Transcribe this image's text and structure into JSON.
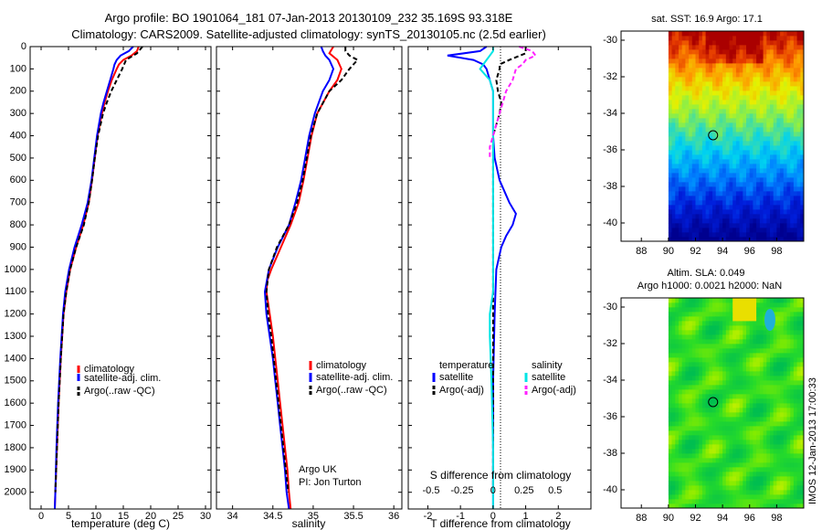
{
  "header": {
    "line1": "Argo profile: BO 1901064_181 07-Jan-2013 20130109_232 35.169S 93.318E",
    "line2": "Climatology: CARS2009. Satellite-adjusted climatology: synTS_20130105.nc (2.5d earlier)"
  },
  "annotation": {
    "line1": "Argo UK",
    "line2": "PI: Jon Turton"
  },
  "side_label": "IMOS 12-Jan-2013 17:00:33",
  "colors": {
    "red": "#ff0000",
    "blue": "#0000ff",
    "black": "#000000",
    "cyan": "#00e5e5",
    "magenta": "#ff22ff"
  },
  "chart_data": [
    {
      "type": "line",
      "xlabel": "temperature (deg C)",
      "ylabel": "",
      "xlim": [
        -2,
        31
      ],
      "ylim": [
        0,
        2075
      ],
      "xticks": [
        "0",
        "5",
        "10",
        "15",
        "20",
        "25",
        "30"
      ],
      "yticks": [
        "0",
        "100",
        "200",
        "300",
        "400",
        "500",
        "600",
        "700",
        "800",
        "900",
        "1000",
        "1100",
        "1200",
        "1300",
        "1400",
        "1500",
        "1600",
        "1700",
        "1800",
        "1900",
        "2000"
      ],
      "legend": [
        "climatology",
        "satellite-adj. clim.",
        "Argo(..raw -QC)"
      ],
      "series": [
        {
          "color": "red",
          "dash": "",
          "depth": [
            0,
            20,
            40,
            60,
            80,
            100,
            150,
            200,
            250,
            300,
            400,
            500,
            600,
            700,
            800,
            900,
            1000,
            1100,
            1200,
            1400,
            1600,
            1800,
            2000,
            2075
          ],
          "values": [
            17.8,
            17.5,
            16.5,
            15,
            14.2,
            13.8,
            12.9,
            12.2,
            11.6,
            11.1,
            10.3,
            9.8,
            9.3,
            8.7,
            7.7,
            6.4,
            5.3,
            4.6,
            4.1,
            3.6,
            3.2,
            2.9,
            2.6,
            2.5
          ]
        },
        {
          "color": "blue",
          "dash": "",
          "depth": [
            0,
            20,
            40,
            60,
            80,
            100,
            150,
            200,
            250,
            300,
            400,
            500,
            600,
            700,
            800,
            900,
            1000,
            1100,
            1200,
            1400,
            1600,
            1800,
            2000,
            2075
          ],
          "values": [
            16.8,
            16,
            14.5,
            13.8,
            13.4,
            13.2,
            12.6,
            12,
            11.4,
            10.9,
            10.2,
            9.7,
            9.2,
            8.5,
            7.4,
            6.1,
            5.1,
            4.4,
            4,
            3.5,
            3.1,
            2.8,
            2.6,
            2.5
          ]
        },
        {
          "color": "black",
          "dash": "5,3",
          "depth": [
            0,
            30,
            60,
            100,
            150,
            200,
            250,
            300,
            400,
            500,
            600,
            700,
            800,
            900,
            1000,
            1100,
            1200,
            1400,
            1600,
            1800,
            2000
          ],
          "values": [
            18.5,
            17.5,
            15.5,
            14.8,
            13.8,
            12.8,
            12,
            11.3,
            10.4,
            9.8,
            9.3,
            8.7,
            7.8,
            6.4,
            5.3,
            4.6,
            4.1,
            3.6,
            3.2,
            2.9,
            2.6
          ]
        }
      ]
    },
    {
      "type": "line",
      "xlabel": "salinity",
      "ylabel": "",
      "xlim": [
        33.8,
        36.1
      ],
      "ylim": [
        0,
        2075
      ],
      "xticks": [
        "34",
        "34.5",
        "35",
        "35.5",
        "36"
      ],
      "legend": [
        "climatology",
        "satellite-adj. clim.",
        "Argo(..raw -QC)"
      ],
      "series": [
        {
          "color": "red",
          "dash": "",
          "depth": [
            0,
            30,
            60,
            100,
            150,
            200,
            300,
            400,
            500,
            600,
            700,
            800,
            900,
            1000,
            1050,
            1100,
            1200,
            1300,
            1400,
            1500,
            1600,
            1700,
            1800,
            1900,
            2000,
            2075
          ],
          "values": [
            35.25,
            35.2,
            35.3,
            35.35,
            35.3,
            35.2,
            35.05,
            34.98,
            34.93,
            34.88,
            34.82,
            34.72,
            34.6,
            34.48,
            34.43,
            34.42,
            34.46,
            34.5,
            34.53,
            34.56,
            34.59,
            34.62,
            34.65,
            34.68,
            34.7,
            34.72
          ]
        },
        {
          "color": "blue",
          "dash": "",
          "depth": [
            0,
            20,
            40,
            60,
            100,
            150,
            200,
            300,
            400,
            500,
            600,
            700,
            800,
            900,
            1000,
            1100,
            1200,
            1300,
            1400,
            1500,
            1600,
            1700,
            1800,
            1900,
            2000,
            2075
          ],
          "values": [
            35.1,
            35.12,
            35.15,
            35.2,
            35.25,
            35.2,
            35.12,
            35.02,
            34.95,
            34.9,
            34.85,
            34.78,
            34.7,
            34.56,
            34.45,
            34.4,
            34.42,
            34.46,
            34.5,
            34.53,
            34.56,
            34.59,
            34.62,
            34.65,
            34.67,
            34.7
          ]
        },
        {
          "color": "black",
          "dash": "5,3",
          "depth": [
            0,
            20,
            40,
            60,
            80,
            100,
            150,
            200,
            300,
            400,
            500,
            600,
            700,
            800,
            900,
            1000,
            1100,
            1200,
            1300,
            1400,
            1600,
            1800,
            2000
          ],
          "values": [
            35.4,
            35.4,
            35.45,
            35.55,
            35.5,
            35.45,
            35.35,
            35.2,
            35.05,
            34.97,
            34.92,
            34.87,
            34.8,
            34.7,
            34.55,
            34.45,
            34.42,
            34.44,
            34.48,
            34.51,
            34.57,
            34.63,
            34.69
          ]
        }
      ]
    },
    {
      "type": "line",
      "xlabel": "T difference from climatology",
      "title2": "S difference from climatology",
      "xlim": [
        -2.6,
        3
      ],
      "ylim": [
        0,
        2075
      ],
      "xticks": [
        "-2",
        "-1",
        "0",
        "1",
        "2"
      ],
      "top_xticks": [
        {
          "label": "-0.5",
          "t": -1.9
        },
        {
          "label": "-0.25",
          "t": -0.95
        },
        {
          "label": "0",
          "t": 0
        },
        {
          "label": "0.25",
          "t": 0.95
        },
        {
          "label": "0.5",
          "t": 1.9
        }
      ],
      "legend_left_title": "temperature",
      "legend_right_title": "salinity",
      "legend": [
        "satellite",
        "Argo(-adj)",
        "satellite",
        "Argo(-adj)"
      ],
      "series": [
        {
          "name": "satellite",
          "color": "blue",
          "dash": "",
          "depth": [
            0,
            20,
            40,
            60,
            80,
            100,
            150,
            200,
            250,
            300,
            350,
            400,
            500,
            600,
            700,
            750,
            800,
            850,
            900,
            1000,
            1200,
            1500,
            2000,
            2075
          ],
          "values": [
            -0.2,
            -0.4,
            -1.4,
            -0.6,
            -0.3,
            -0.2,
            -0.1,
            0,
            0,
            0,
            0,
            0,
            0.05,
            0.2,
            0.5,
            0.7,
            0.6,
            0.4,
            0.25,
            0.1,
            0.05,
            0,
            0,
            0
          ]
        },
        {
          "name": "Argo(-adj)",
          "color": "black",
          "dash": "5,3",
          "depth": [
            0,
            30,
            60,
            80,
            100,
            150,
            200,
            250,
            300,
            350,
            400,
            500,
            700,
            1000,
            1500,
            2000
          ],
          "values": [
            1,
            1,
            0.5,
            0.2,
            0.2,
            0.1,
            0.15,
            0.25,
            0.2,
            0.1,
            0,
            0,
            0,
            0,
            0,
            0
          ]
        },
        {
          "name": "satellite",
          "color": "cyan",
          "dash": "",
          "depth": [
            0,
            20,
            40,
            60,
            100,
            150,
            200,
            300,
            500,
            800,
            1100,
            1200,
            1300,
            1500,
            1800,
            2075
          ],
          "values": [
            0,
            0,
            -0.1,
            -0.2,
            -0.4,
            -0.1,
            0,
            0,
            0,
            0,
            0,
            -0.1,
            -0.1,
            -0.05,
            0,
            0
          ]
        },
        {
          "name": "Argo(-adj)",
          "color": "magenta",
          "dash": "5,3",
          "depth": [
            0,
            20,
            40,
            60,
            80,
            100,
            150,
            200,
            300,
            350,
            400,
            450,
            500
          ],
          "values": [
            0.8,
            1.2,
            1.3,
            1,
            0.9,
            0.7,
            0.6,
            0.4,
            0.2,
            0.1,
            0,
            -0.1,
            -0.1
          ]
        }
      ]
    },
    {
      "type": "heatmap",
      "title": "sat. SST: 16.9 Argo: 17.1",
      "xlim": [
        86.5,
        100
      ],
      "ylim": [
        -41,
        -29.5
      ],
      "xticks": [
        "88",
        "90",
        "92",
        "94",
        "96",
        "98"
      ],
      "yticks": [
        "-30",
        "-32",
        "-34",
        "-36",
        "-38",
        "-40"
      ],
      "data_xlim": [
        90,
        100
      ],
      "marker": {
        "lon": 93.3,
        "lat": -35.2
      },
      "field": "sst"
    },
    {
      "type": "heatmap",
      "title": "Altim. SLA: 0.049",
      "title2": "Argo h1000: 0.0021 h2000: NaN",
      "xlim": [
        86.5,
        100
      ],
      "ylim": [
        -41,
        -29.5
      ],
      "xticks": [
        "88",
        "90",
        "92",
        "94",
        "96",
        "98"
      ],
      "yticks": [
        "-30",
        "-32",
        "-34",
        "-36",
        "-38",
        "-40"
      ],
      "data_xlim": [
        90,
        100
      ],
      "marker": {
        "lon": 93.3,
        "lat": -35.2
      },
      "field": "sla"
    }
  ]
}
